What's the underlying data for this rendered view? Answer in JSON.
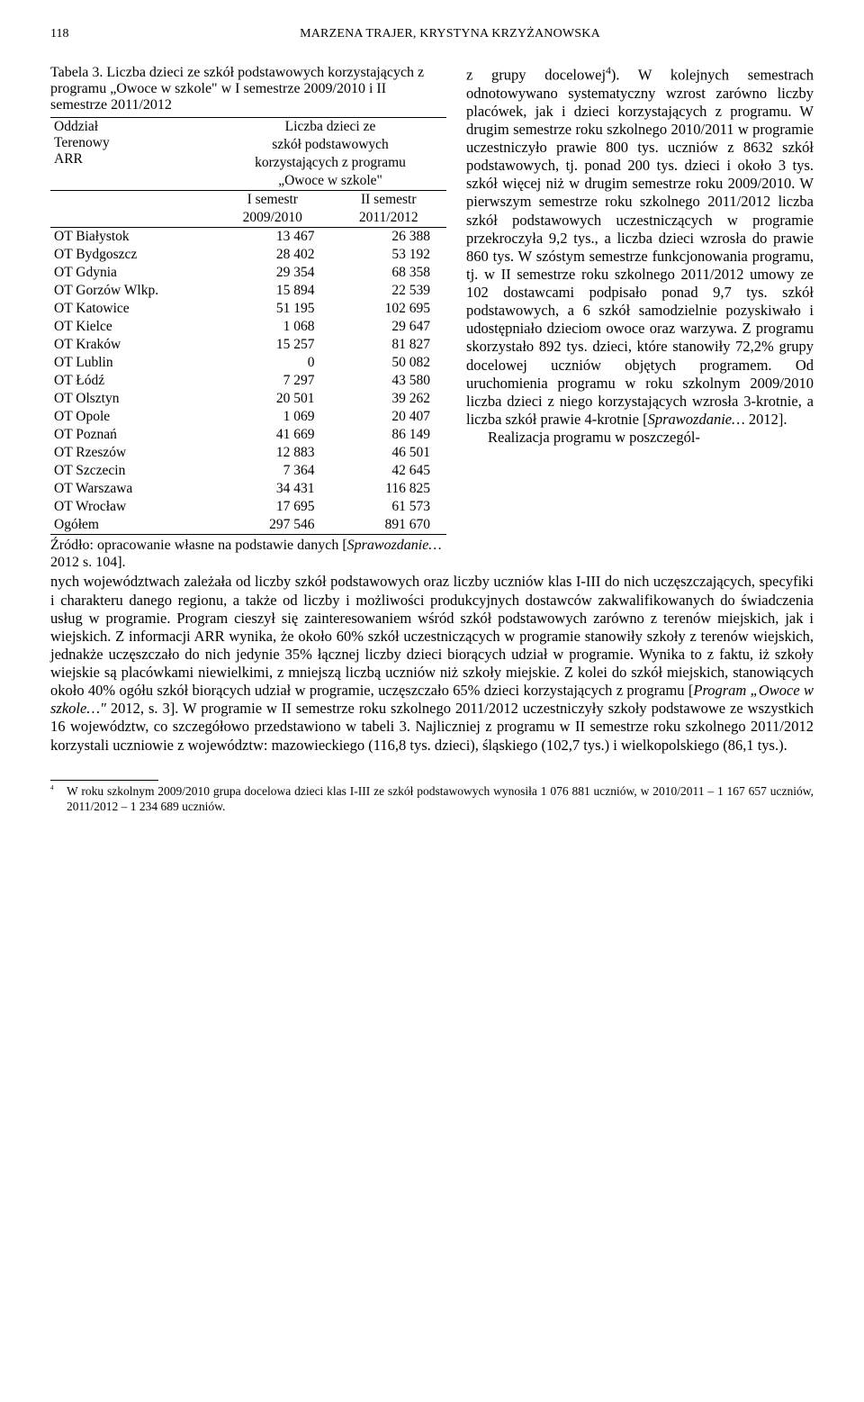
{
  "page_number": "118",
  "running_head": "MARZENA TRAJER, KRYSTYNA KRZYŻANOWSKA",
  "table": {
    "caption": "Tabela 3. Liczba dzieci ze szkół podstawowych korzystających z programu „Owoce w szkole\" w I semestrze 2009/2010 i II semestrze 2011/2012",
    "stub_head_1": "Oddział",
    "stub_head_2": "Terenowy",
    "stub_head_3": "ARR",
    "span_head_1": "Liczba dzieci ze",
    "span_head_2": "szkół podstawowych",
    "span_head_3": "korzystających z programu",
    "span_head_4": "„Owoce w szkole\"",
    "col1a": "I semestr",
    "col1b": "2009/2010",
    "col2a": "II semestr",
    "col2b": "2011/2012",
    "rows": [
      {
        "label": "OT Białystok",
        "v1": "13 467",
        "v2": "26 388"
      },
      {
        "label": "OT Bydgoszcz",
        "v1": "28 402",
        "v2": "53 192"
      },
      {
        "label": "OT Gdynia",
        "v1": "29 354",
        "v2": "68 358"
      },
      {
        "label": "OT Gorzów Wlkp.",
        "v1": "15 894",
        "v2": "22 539"
      },
      {
        "label": "OT Katowice",
        "v1": "51 195",
        "v2": "102 695"
      },
      {
        "label": "OT Kielce",
        "v1": "1 068",
        "v2": "29 647"
      },
      {
        "label": "OT Kraków",
        "v1": "15 257",
        "v2": "81 827"
      },
      {
        "label": "OT Lublin",
        "v1": "0",
        "v2": "50 082"
      },
      {
        "label": "OT Łódź",
        "v1": "7 297",
        "v2": "43 580"
      },
      {
        "label": "OT Olsztyn",
        "v1": "20 501",
        "v2": "39 262"
      },
      {
        "label": "OT Opole",
        "v1": "1 069",
        "v2": "20 407"
      },
      {
        "label": "OT Poznań",
        "v1": "41 669",
        "v2": "86 149"
      },
      {
        "label": "OT Rzeszów",
        "v1": "12 883",
        "v2": "46 501"
      },
      {
        "label": "OT Szczecin",
        "v1": "7 364",
        "v2": "42 645"
      },
      {
        "label": "OT Warszawa",
        "v1": "34 431",
        "v2": "116 825"
      },
      {
        "label": "OT Wrocław",
        "v1": "17 695",
        "v2": "61 573"
      }
    ],
    "total_label": "Ogółem",
    "total_v1": "297 546",
    "total_v2": "891 670",
    "source_pre": "Źródło: opracowanie własne na podstawie danych [",
    "source_ital": "Sprawozdanie…",
    "source_post": " 2012 s. 104]."
  },
  "right_para_1": "z grupy docelowej",
  "right_para_1_sup": "4",
  "right_para_1b": "). W kolejnych semestrach odnotowywano systematyczny wzrost zarówno liczby placówek, jak i dzieci korzystających z programu. W drugim semestrze roku szkolnego 2010/2011 w programie uczestniczyło prawie 800 tys. uczniów z 8632 szkół podstawowych, tj. ponad 200 tys. dzieci i około 3 tys. szkół więcej niż w drugim semestrze roku 2009/2010. W pierwszym semestrze roku szkolnego 2011/2012 liczba szkół podstawowych uczestniczących w programie przekroczyła 9,2 tys., a liczba dzieci wzrosła do prawie 860 tys. W szóstym semestrze funkcjonowania programu, tj. w II semestrze roku szkolnego 2011/2012 umowy ze 102 dostawcami podpisało ponad 9,7 tys. szkół podstawowych, a 6 szkół samodzielnie pozyskiwało i udostępniało dzieciom owoce oraz warzywa. Z programu skorzystało 892 tys. dzieci, które stanowiły 72,2% grupy docelowej uczniów objętych programem. Od uruchomienia programu w roku szkolnym 2009/2010 liczba dzieci z niego korzystających wzrosła 3-krotnie, a liczba szkół prawie 4-krotnie [",
  "right_para_1_ital": "Sprawozdanie…",
  "right_para_1c": " 2012].",
  "right_para_2a": "Realizacja programu w poszczegól-",
  "body_after_1": "nych województwach zależała od liczby szkół podstawowych oraz liczby uczniów klas I-III do nich uczęszczających, specyfiki i charakteru danego regionu, a także od liczby i możliwości produkcyjnych dostawców zakwalifikowanych do świadczenia usług w programie. Program cieszył się zainteresowaniem wśród szkół podstawowych zarówno z terenów miejskich, jak i wiejskich. Z informacji ARR wynika, że około 60% szkół uczestniczących w programie stanowiły szkoły z terenów wiejskich, jednakże uczęszczało do nich jedynie 35% łącznej liczby dzieci biorących udział w programie. Wynika to z faktu, iż szkoły wiejskie są placówkami niewielkimi, z mniejszą liczbą uczniów niż szkoły miejskie. Z kolei do szkół miejskich, stanowiących około 40% ogółu szkół biorących udział w programie, uczęszczało 65% dzieci korzystających z programu [",
  "body_after_1_ital": "Program „Owoce w szkole…\"",
  "body_after_1b": " 2012, s. 3]. W programie w II semestrze roku szkolnego 2011/2012 uczestniczyły szkoły podstawowe ze wszystkich 16 województw, co szczegółowo przedstawiono w tabeli 3. Najliczniej z programu w II semestrze roku szkolnego 2011/2012 korzystali uczniowie z województw: mazowieckiego (116,8 tys. dzieci), śląskiego (102,7 tys.) i wielkopolskiego (86,1 tys.).",
  "footnote_mark": "4",
  "footnote_text": "W roku szkolnym 2009/2010 grupa docelowa dzieci klas I-III ze szkół podstawowych wynosiła 1 076 881 uczniów, w 2010/2011 – 1 167 657 uczniów, 2011/2012 – 1 234 689 uczniów."
}
